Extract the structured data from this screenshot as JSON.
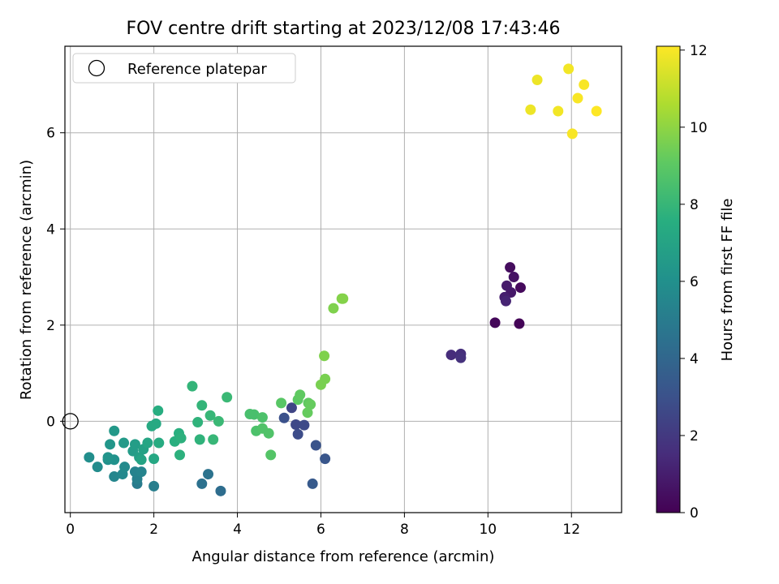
{
  "chart_data": {
    "type": "scatter",
    "title": "FOV centre drift starting at 2023/12/08 17:43:46",
    "xlabel": "Angular distance from reference (arcmin)",
    "ylabel": "Rotation from reference (arcmin)",
    "xlim": [
      -0.13,
      13.2
    ],
    "ylim": [
      -1.9,
      7.8
    ],
    "x_ticks": [
      0,
      2,
      4,
      6,
      8,
      10,
      12
    ],
    "y_ticks": [
      0,
      2,
      4,
      6
    ],
    "grid": true,
    "legend": {
      "position": "top-left",
      "entries": [
        {
          "label": "Reference platepar",
          "marker": "open-circle"
        }
      ]
    },
    "reference_point": {
      "x": 0,
      "y": 0
    },
    "colorbar": {
      "label": "Hours from first FF file",
      "range": [
        0,
        12.1
      ],
      "ticks": [
        0,
        2,
        4,
        6,
        8,
        10,
        12
      ],
      "colormap": "viridis"
    },
    "points": [
      {
        "x": 10.75,
        "y": 2.03,
        "h": 0.1
      },
      {
        "x": 10.17,
        "y": 2.05,
        "h": 0.2
      },
      {
        "x": 10.78,
        "y": 2.78,
        "h": 0.3
      },
      {
        "x": 10.53,
        "y": 3.2,
        "h": 0.4
      },
      {
        "x": 10.62,
        "y": 3.0,
        "h": 0.6
      },
      {
        "x": 10.55,
        "y": 2.68,
        "h": 0.8
      },
      {
        "x": 10.45,
        "y": 2.82,
        "h": 0.9
      },
      {
        "x": 10.4,
        "y": 2.58,
        "h": 1.0
      },
      {
        "x": 10.43,
        "y": 2.5,
        "h": 1.2
      },
      {
        "x": 9.12,
        "y": 1.38,
        "h": 1.5
      },
      {
        "x": 9.35,
        "y": 1.4,
        "h": 1.6
      },
      {
        "x": 9.35,
        "y": 1.32,
        "h": 1.7
      },
      {
        "x": 5.3,
        "y": 0.28,
        "h": 2.5
      },
      {
        "x": 5.4,
        "y": -0.07,
        "h": 2.6
      },
      {
        "x": 5.6,
        "y": -0.08,
        "h": 2.7
      },
      {
        "x": 5.45,
        "y": -0.27,
        "h": 2.8
      },
      {
        "x": 5.12,
        "y": 0.07,
        "h": 3.0
      },
      {
        "x": 5.88,
        "y": -0.5,
        "h": 3.1
      },
      {
        "x": 6.1,
        "y": -0.78,
        "h": 3.2
      },
      {
        "x": 5.8,
        "y": -1.3,
        "h": 3.4
      },
      {
        "x": 3.6,
        "y": -1.45,
        "h": 4.3
      },
      {
        "x": 3.15,
        "y": -1.3,
        "h": 4.5
      },
      {
        "x": 3.3,
        "y": -1.1,
        "h": 4.6
      },
      {
        "x": 1.6,
        "y": -1.3,
        "h": 5.0
      },
      {
        "x": 2.0,
        "y": -1.35,
        "h": 5.1
      },
      {
        "x": 1.6,
        "y": -1.2,
        "h": 5.2
      },
      {
        "x": 1.55,
        "y": -1.05,
        "h": 5.3
      },
      {
        "x": 1.7,
        "y": -1.05,
        "h": 5.4
      },
      {
        "x": 1.05,
        "y": -1.15,
        "h": 5.5
      },
      {
        "x": 1.25,
        "y": -1.1,
        "h": 5.6
      },
      {
        "x": 1.3,
        "y": -0.95,
        "h": 5.7
      },
      {
        "x": 0.65,
        "y": -0.95,
        "h": 5.8
      },
      {
        "x": 0.45,
        "y": -0.75,
        "h": 5.9
      },
      {
        "x": 0.9,
        "y": -0.8,
        "h": 6.0
      },
      {
        "x": 1.05,
        "y": -0.8,
        "h": 6.1
      },
      {
        "x": 0.9,
        "y": -0.75,
        "h": 6.2
      },
      {
        "x": 0.95,
        "y": -0.48,
        "h": 6.3
      },
      {
        "x": 1.05,
        "y": -0.2,
        "h": 6.4
      },
      {
        "x": 1.28,
        "y": -0.45,
        "h": 6.5
      },
      {
        "x": 1.5,
        "y": -0.62,
        "h": 6.6
      },
      {
        "x": 1.55,
        "y": -0.48,
        "h": 6.7
      },
      {
        "x": 1.65,
        "y": -0.75,
        "h": 6.8
      },
      {
        "x": 1.75,
        "y": -0.58,
        "h": 6.9
      },
      {
        "x": 1.7,
        "y": -0.8,
        "h": 7.0
      },
      {
        "x": 1.85,
        "y": -0.45,
        "h": 7.1
      },
      {
        "x": 2.0,
        "y": -0.78,
        "h": 7.2
      },
      {
        "x": 1.95,
        "y": -0.1,
        "h": 7.3
      },
      {
        "x": 2.05,
        "y": -0.05,
        "h": 7.3
      },
      {
        "x": 2.12,
        "y": -0.45,
        "h": 7.4
      },
      {
        "x": 2.1,
        "y": 0.22,
        "h": 7.5
      },
      {
        "x": 2.5,
        "y": -0.42,
        "h": 7.6
      },
      {
        "x": 2.6,
        "y": -0.25,
        "h": 7.6
      },
      {
        "x": 2.65,
        "y": -0.35,
        "h": 7.7
      },
      {
        "x": 2.62,
        "y": -0.7,
        "h": 7.7
      },
      {
        "x": 3.05,
        "y": -0.02,
        "h": 7.8
      },
      {
        "x": 3.1,
        "y": -0.38,
        "h": 7.8
      },
      {
        "x": 3.15,
        "y": 0.33,
        "h": 7.9
      },
      {
        "x": 2.92,
        "y": 0.73,
        "h": 7.9
      },
      {
        "x": 3.35,
        "y": 0.12,
        "h": 8.0
      },
      {
        "x": 3.42,
        "y": -0.38,
        "h": 8.0
      },
      {
        "x": 3.55,
        "y": 0.0,
        "h": 8.1
      },
      {
        "x": 3.75,
        "y": 0.5,
        "h": 8.1
      },
      {
        "x": 4.3,
        "y": 0.15,
        "h": 8.5
      },
      {
        "x": 4.4,
        "y": 0.14,
        "h": 8.5
      },
      {
        "x": 4.45,
        "y": -0.2,
        "h": 8.6
      },
      {
        "x": 4.6,
        "y": 0.08,
        "h": 8.6
      },
      {
        "x": 4.6,
        "y": -0.15,
        "h": 8.7
      },
      {
        "x": 4.75,
        "y": -0.25,
        "h": 8.7
      },
      {
        "x": 4.8,
        "y": -0.7,
        "h": 8.8
      },
      {
        "x": 5.05,
        "y": 0.38,
        "h": 8.9
      },
      {
        "x": 5.45,
        "y": 0.45,
        "h": 9.0
      },
      {
        "x": 5.5,
        "y": 0.55,
        "h": 9.1
      },
      {
        "x": 5.7,
        "y": 0.38,
        "h": 9.1
      },
      {
        "x": 5.75,
        "y": 0.35,
        "h": 9.2
      },
      {
        "x": 5.68,
        "y": 0.18,
        "h": 9.2
      },
      {
        "x": 6.0,
        "y": 0.76,
        "h": 9.6
      },
      {
        "x": 6.1,
        "y": 0.88,
        "h": 9.6
      },
      {
        "x": 6.08,
        "y": 1.36,
        "h": 9.7
      },
      {
        "x": 6.3,
        "y": 2.35,
        "h": 9.7
      },
      {
        "x": 6.5,
        "y": 2.55,
        "h": 9.8
      },
      {
        "x": 6.53,
        "y": 2.55,
        "h": 9.8
      },
      {
        "x": 11.02,
        "y": 6.48,
        "h": 11.8
      },
      {
        "x": 11.18,
        "y": 7.1,
        "h": 11.8
      },
      {
        "x": 11.68,
        "y": 6.45,
        "h": 11.9
      },
      {
        "x": 11.93,
        "y": 7.33,
        "h": 11.9
      },
      {
        "x": 12.02,
        "y": 5.98,
        "h": 12.0
      },
      {
        "x": 12.15,
        "y": 6.72,
        "h": 12.0
      },
      {
        "x": 12.3,
        "y": 7.0,
        "h": 12.0
      },
      {
        "x": 12.6,
        "y": 6.45,
        "h": 12.1
      }
    ]
  }
}
